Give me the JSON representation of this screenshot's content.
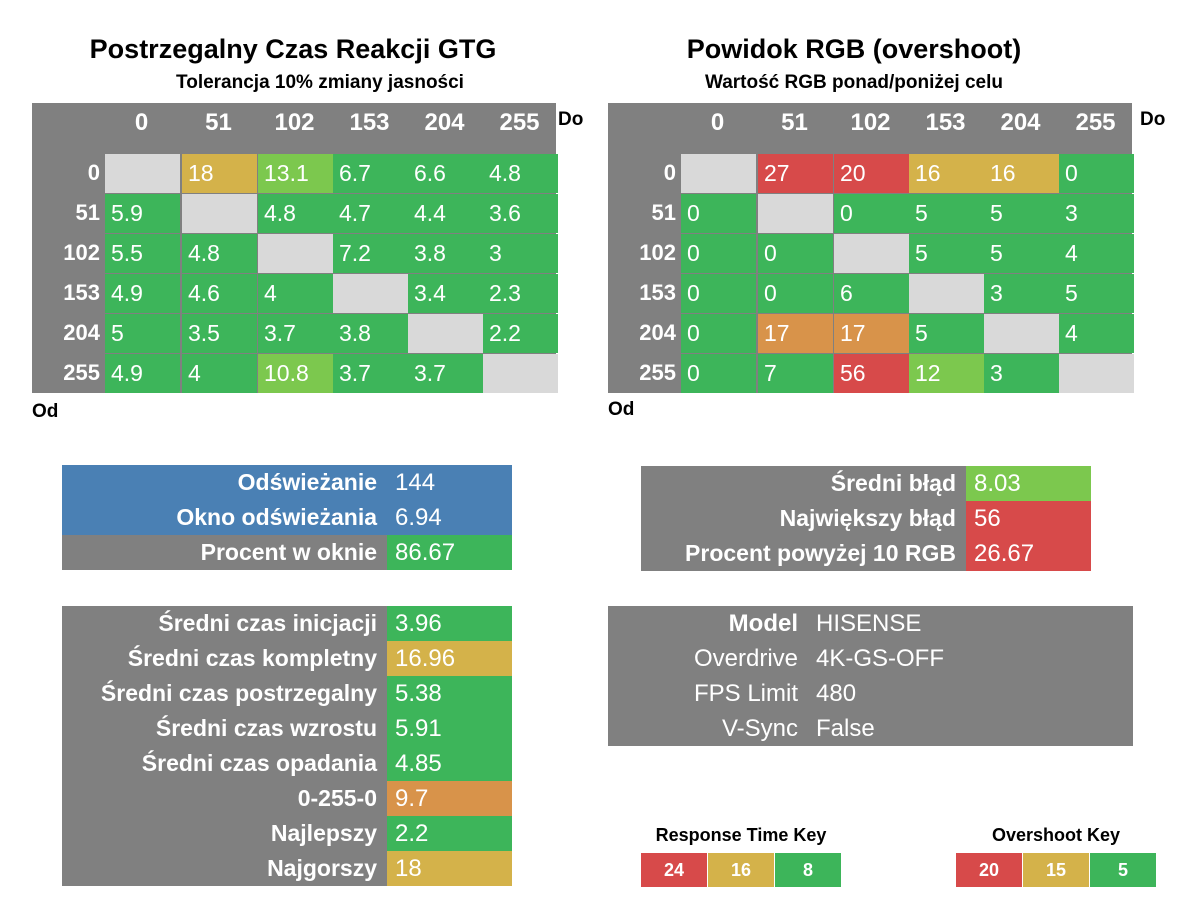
{
  "colors": {
    "green": "#3db55a",
    "lightgreen": "#7cc84e",
    "yellow": "#d4b24a",
    "orange": "#d8934a",
    "red": "#d74a4a",
    "grey": "#808080",
    "blue": "#4a80b4",
    "diag": "#d9d9d9"
  },
  "gtg": {
    "title": "Postrzegalny Czas Reakcji GTG",
    "subtitle": "Tolerancja 10% zmiany jasności",
    "to_label": "Do",
    "from_label": "Od",
    "headers": [
      "0",
      "51",
      "102",
      "153",
      "204",
      "255"
    ],
    "rows": [
      {
        "label": "0",
        "cells": [
          {
            "v": "",
            "c": "diag"
          },
          {
            "v": "18",
            "c": "yellow"
          },
          {
            "v": "13.1",
            "c": "lightgreen"
          },
          {
            "v": "6.7",
            "c": "green"
          },
          {
            "v": "6.6",
            "c": "green"
          },
          {
            "v": "4.8",
            "c": "green"
          }
        ]
      },
      {
        "label": "51",
        "cells": [
          {
            "v": "5.9",
            "c": "green"
          },
          {
            "v": "",
            "c": "diag"
          },
          {
            "v": "4.8",
            "c": "green"
          },
          {
            "v": "4.7",
            "c": "green"
          },
          {
            "v": "4.4",
            "c": "green"
          },
          {
            "v": "3.6",
            "c": "green"
          }
        ]
      },
      {
        "label": "102",
        "cells": [
          {
            "v": "5.5",
            "c": "green"
          },
          {
            "v": "4.8",
            "c": "green"
          },
          {
            "v": "",
            "c": "diag"
          },
          {
            "v": "7.2",
            "c": "green"
          },
          {
            "v": "3.8",
            "c": "green"
          },
          {
            "v": "3",
            "c": "green"
          }
        ]
      },
      {
        "label": "153",
        "cells": [
          {
            "v": "4.9",
            "c": "green"
          },
          {
            "v": "4.6",
            "c": "green"
          },
          {
            "v": "4",
            "c": "green"
          },
          {
            "v": "",
            "c": "diag"
          },
          {
            "v": "3.4",
            "c": "green"
          },
          {
            "v": "2.3",
            "c": "green"
          }
        ]
      },
      {
        "label": "204",
        "cells": [
          {
            "v": "5",
            "c": "green"
          },
          {
            "v": "3.5",
            "c": "green"
          },
          {
            "v": "3.7",
            "c": "green"
          },
          {
            "v": "3.8",
            "c": "green"
          },
          {
            "v": "",
            "c": "diag"
          },
          {
            "v": "2.2",
            "c": "green"
          }
        ]
      },
      {
        "label": "255",
        "cells": [
          {
            "v": "4.9",
            "c": "green"
          },
          {
            "v": "4",
            "c": "green"
          },
          {
            "v": "10.8",
            "c": "lightgreen"
          },
          {
            "v": "3.7",
            "c": "green"
          },
          {
            "v": "3.7",
            "c": "green"
          },
          {
            "v": "",
            "c": "diag"
          }
        ]
      }
    ]
  },
  "overshoot": {
    "title": "Powidok RGB (overshoot)",
    "subtitle": "Wartość RGB ponad/poniżej celu",
    "to_label": "Do",
    "from_label": "Od",
    "headers": [
      "0",
      "51",
      "102",
      "153",
      "204",
      "255"
    ],
    "rows": [
      {
        "label": "0",
        "cells": [
          {
            "v": "",
            "c": "diag"
          },
          {
            "v": "27",
            "c": "red"
          },
          {
            "v": "20",
            "c": "red"
          },
          {
            "v": "16",
            "c": "yellow"
          },
          {
            "v": "16",
            "c": "yellow"
          },
          {
            "v": "0",
            "c": "green"
          }
        ]
      },
      {
        "label": "51",
        "cells": [
          {
            "v": "0",
            "c": "green"
          },
          {
            "v": "",
            "c": "diag"
          },
          {
            "v": "0",
            "c": "green"
          },
          {
            "v": "5",
            "c": "green"
          },
          {
            "v": "5",
            "c": "green"
          },
          {
            "v": "3",
            "c": "green"
          }
        ]
      },
      {
        "label": "102",
        "cells": [
          {
            "v": "0",
            "c": "green"
          },
          {
            "v": "0",
            "c": "green"
          },
          {
            "v": "",
            "c": "diag"
          },
          {
            "v": "5",
            "c": "green"
          },
          {
            "v": "5",
            "c": "green"
          },
          {
            "v": "4",
            "c": "green"
          }
        ]
      },
      {
        "label": "153",
        "cells": [
          {
            "v": "0",
            "c": "green"
          },
          {
            "v": "0",
            "c": "green"
          },
          {
            "v": "6",
            "c": "green"
          },
          {
            "v": "",
            "c": "diag"
          },
          {
            "v": "3",
            "c": "green"
          },
          {
            "v": "5",
            "c": "green"
          }
        ]
      },
      {
        "label": "204",
        "cells": [
          {
            "v": "0",
            "c": "green"
          },
          {
            "v": "17",
            "c": "orange"
          },
          {
            "v": "17",
            "c": "orange"
          },
          {
            "v": "5",
            "c": "green"
          },
          {
            "v": "",
            "c": "diag"
          },
          {
            "v": "4",
            "c": "green"
          }
        ]
      },
      {
        "label": "255",
        "cells": [
          {
            "v": "0",
            "c": "green"
          },
          {
            "v": "7",
            "c": "green"
          },
          {
            "v": "56",
            "c": "red"
          },
          {
            "v": "12",
            "c": "lightgreen"
          },
          {
            "v": "3",
            "c": "green"
          },
          {
            "v": "",
            "c": "diag"
          }
        ]
      }
    ]
  },
  "refresh": {
    "rows": [
      {
        "label": "Odświeżanie",
        "value": "144",
        "lc": "blue",
        "vc": "blue"
      },
      {
        "label": "Okno odświeżania",
        "value": "6.94",
        "lc": "blue",
        "vc": "blue"
      },
      {
        "label": "Procent w oknie",
        "value": "86.67",
        "lc": "grey",
        "vc": "green"
      }
    ]
  },
  "error": {
    "rows": [
      {
        "label": "Średni błąd",
        "value": "8.03",
        "vc": "lightgreen"
      },
      {
        "label": "Największy błąd",
        "value": "56",
        "vc": "red"
      },
      {
        "label": "Procent powyżej 10 RGB",
        "value": "26.67",
        "vc": "red"
      }
    ]
  },
  "times": {
    "rows": [
      {
        "label": "Średni czas inicjacji",
        "value": "3.96",
        "vc": "green"
      },
      {
        "label": "Średni czas kompletny",
        "value": "16.96",
        "vc": "yellow"
      },
      {
        "label": "Średni czas postrzegalny",
        "value": "5.38",
        "vc": "green"
      },
      {
        "label": "Średni czas wzrostu",
        "value": "5.91",
        "vc": "green"
      },
      {
        "label": "Średni czas opadania",
        "value": "4.85",
        "vc": "green"
      },
      {
        "label": "0-255-0",
        "value": "9.7",
        "vc": "orange"
      },
      {
        "label": "Najlepszy",
        "value": "2.2",
        "vc": "green"
      },
      {
        "label": "Najgorszy",
        "value": "18",
        "vc": "yellow"
      }
    ]
  },
  "info": {
    "rows": [
      {
        "label": "Model",
        "value": "HISENSE",
        "bold": true
      },
      {
        "label": "Overdrive",
        "value": "4K-GS-OFF",
        "bold": false
      },
      {
        "label": "FPS Limit",
        "value": "480",
        "bold": false
      },
      {
        "label": "V-Sync",
        "value": "False",
        "bold": false
      }
    ]
  },
  "response_key": {
    "title": "Response Time Key",
    "items": [
      {
        "v": "24",
        "c": "red"
      },
      {
        "v": "16",
        "c": "yellow"
      },
      {
        "v": "8",
        "c": "green"
      }
    ]
  },
  "overshoot_key": {
    "title": "Overshoot Key",
    "items": [
      {
        "v": "20",
        "c": "red"
      },
      {
        "v": "15",
        "c": "yellow"
      },
      {
        "v": "5",
        "c": "green"
      }
    ]
  }
}
